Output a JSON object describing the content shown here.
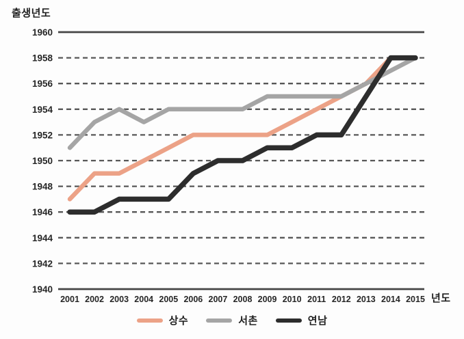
{
  "figure": {
    "background": "#fdfdfd"
  },
  "chart_data": {
    "type": "line",
    "title": "",
    "xlabel": "년도",
    "ylabel": "출생년도",
    "x": [
      2001,
      2002,
      2003,
      2004,
      2005,
      2006,
      2007,
      2008,
      2009,
      2010,
      2011,
      2012,
      2013,
      2014,
      2015
    ],
    "series": [
      {
        "name": "상수",
        "color": "#eca287",
        "stroke_width": 6.5,
        "values": [
          1947,
          1949,
          1949,
          1950,
          1951,
          1952,
          1952,
          1952,
          1952,
          1953,
          1954,
          1955,
          1956,
          1958,
          1958
        ]
      },
      {
        "name": "서촌",
        "color": "#a5a5a5",
        "stroke_width": 6.5,
        "values": [
          1951,
          1953,
          1954,
          1953,
          1954,
          1954,
          1954,
          1954,
          1955,
          1955,
          1955,
          1955,
          1956,
          1957,
          1958
        ]
      },
      {
        "name": "연남",
        "color": "#2d2d2d",
        "stroke_width": 7.5,
        "values": [
          1946,
          1946,
          1947,
          1947,
          1947,
          1949,
          1950,
          1950,
          1951,
          1951,
          1952,
          1952,
          1955,
          1958,
          1958
        ]
      }
    ],
    "ylim": [
      1940,
      1960
    ],
    "y_tick_step": 2,
    "y_ticks": [
      1960,
      1958,
      1956,
      1954,
      1952,
      1950,
      1948,
      1946,
      1944,
      1942,
      1940
    ],
    "grid": "horizontal, dashed between solid top (1960) and solid bottom axis (1940)",
    "legend_position": "bottom-center"
  },
  "style": {
    "grid_dash_color": "#575757",
    "grid_solid_color": "#454545",
    "tick_label_color": "#262626"
  }
}
